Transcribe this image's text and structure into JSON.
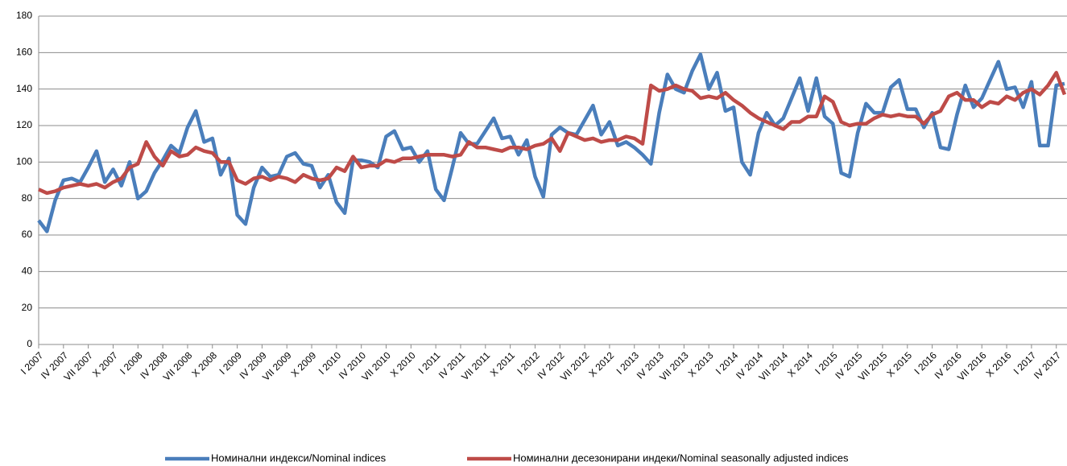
{
  "chart_data": {
    "type": "line",
    "categories": [
      "I 2007",
      null,
      null,
      "IV 2007",
      null,
      null,
      "VII 2007",
      null,
      null,
      "X 2007",
      null,
      null,
      "I 2008",
      null,
      null,
      "IV 2008",
      null,
      null,
      "VII 2008",
      null,
      null,
      "X 2008",
      null,
      null,
      "I 2009",
      null,
      null,
      "IV 2009",
      null,
      null,
      "VII 2009",
      null,
      null,
      "X 2009",
      null,
      null,
      "I 2010",
      null,
      null,
      "IV 2010",
      null,
      null,
      "VII 2010",
      null,
      null,
      "X 2010",
      null,
      null,
      "I 2011",
      null,
      null,
      "IV 2011",
      null,
      null,
      "VII 2011",
      null,
      null,
      "X 2011",
      null,
      null,
      "I 2012",
      null,
      null,
      "IV 2012",
      null,
      null,
      "VII 2012",
      null,
      null,
      "X 2012",
      null,
      null,
      "I 2013",
      null,
      null,
      "IV 2013",
      null,
      null,
      "VII 2013",
      null,
      null,
      "X 2013",
      null,
      null,
      "I 2014",
      null,
      null,
      "IV 2014",
      null,
      null,
      "VII 2014",
      null,
      null,
      "X 2014",
      null,
      null,
      "I 2015",
      null,
      null,
      "IV 2015",
      null,
      null,
      "VII 2015",
      null,
      null,
      "X 2015",
      null,
      null,
      "I 2016",
      null,
      null,
      "IV 2016",
      null,
      null,
      "VII 2016",
      null,
      null,
      "X 2016",
      null,
      null,
      "I 2017",
      null,
      null,
      "IV 2017",
      null
    ],
    "series": [
      {
        "name": "Номинални индекси/Nominal indices",
        "color": "#4a7ebb",
        "values": [
          68,
          62,
          79,
          90,
          91,
          89,
          97,
          106,
          89,
          96,
          87,
          100,
          80,
          84,
          94,
          101,
          109,
          105,
          119,
          128,
          111,
          113,
          93,
          102,
          71,
          66,
          86,
          97,
          92,
          93,
          103,
          105,
          99,
          98,
          86,
          93,
          78,
          72,
          101,
          101,
          100,
          97,
          114,
          117,
          107,
          108,
          100,
          106,
          85,
          79,
          97,
          116,
          110,
          110,
          117,
          124,
          113,
          114,
          104,
          112,
          92,
          81,
          115,
          119,
          116,
          115,
          123,
          131,
          115,
          122,
          109,
          111,
          108,
          104,
          99,
          127,
          148,
          140,
          138,
          150,
          159,
          140,
          149,
          128,
          130,
          100,
          93,
          116,
          127,
          120,
          124,
          135,
          146,
          128,
          146,
          125,
          121,
          94,
          92,
          116,
          132,
          127,
          127,
          141,
          145,
          129,
          129,
          119,
          127,
          108,
          107,
          126,
          142,
          130,
          135,
          145,
          155,
          140,
          141,
          130,
          144,
          109,
          109,
          142,
          143
        ]
      },
      {
        "name": "Номинални десезонирани индеки/Nominal seasonally adjusted indices",
        "color": "#be4b48",
        "values": [
          85,
          83,
          84,
          86,
          87,
          88,
          87,
          88,
          86,
          89,
          91,
          97,
          99,
          111,
          103,
          98,
          106,
          103,
          104,
          108,
          106,
          105,
          100,
          100,
          90,
          88,
          91,
          92,
          90,
          92,
          91,
          89,
          93,
          91,
          90,
          91,
          97,
          95,
          103,
          97,
          98,
          98,
          101,
          100,
          102,
          102,
          103,
          104,
          104,
          104,
          103,
          104,
          111,
          108,
          108,
          107,
          106,
          108,
          108,
          107,
          109,
          110,
          113,
          106,
          116,
          114,
          112,
          113,
          111,
          112,
          112,
          114,
          113,
          110,
          142,
          139,
          140,
          142,
          140,
          139,
          135,
          136,
          135,
          138,
          134,
          131,
          127,
          124,
          122,
          120,
          118,
          122,
          122,
          125,
          125,
          136,
          133,
          122,
          120,
          121,
          121,
          124,
          126,
          125,
          126,
          125,
          125,
          121,
          126,
          128,
          136,
          138,
          134,
          134,
          130,
          133,
          132,
          136,
          134,
          138,
          140,
          137,
          142,
          149,
          137
        ]
      }
    ],
    "ylim": [
      0,
      180
    ],
    "yticks": [
      0,
      20,
      40,
      60,
      80,
      100,
      120,
      140,
      160,
      180
    ],
    "grid": true
  }
}
